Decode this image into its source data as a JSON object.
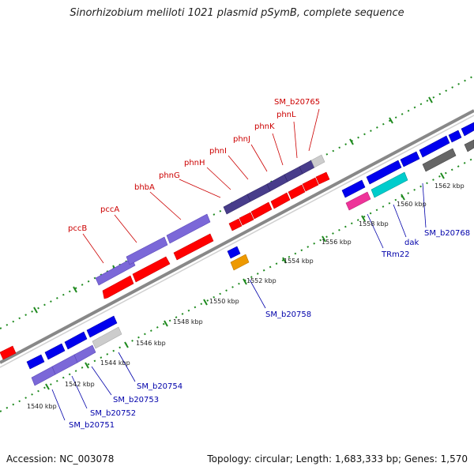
{
  "title": "Sinorhizobium meliloti 1021 plasmid pSymB, complete sequence",
  "footer": {
    "accession": "Accession: NC_003078",
    "stats": "Topology: circular; Length: 1,683,333 bp; Genes: 1,570"
  },
  "colors": {
    "backbone": "#888888",
    "tick_dots": "#1f8a1f",
    "label_top": "#cc0000",
    "label_bottom": "#0000aa",
    "red_gene": "#ff0000",
    "blue_gene": "#0000ee",
    "purple_gene": "#7b68d8",
    "dark_purple_gene": "#483d8b",
    "grey_gene": "#cccccc",
    "dark_grey_gene": "#666666",
    "cyan_gene": "#00cccc",
    "pink_gene": "#ee3399",
    "orange_gene": "#ee9900"
  },
  "kbp_labels": [
    {
      "id": "1540",
      "text": "1540 kbp"
    },
    {
      "id": "1542",
      "text": "1542 kbp"
    },
    {
      "id": "1544",
      "text": "1544 kbp"
    },
    {
      "id": "1546",
      "text": "1546 kbp"
    },
    {
      "id": "1548",
      "text": "1548 kbp"
    },
    {
      "id": "1550",
      "text": "1550 kbp"
    },
    {
      "id": "1552",
      "text": "1552 kbp"
    },
    {
      "id": "1554",
      "text": "1554 kbp"
    },
    {
      "id": "1556",
      "text": "1556 kbp"
    },
    {
      "id": "1558",
      "text": "1558 kbp"
    },
    {
      "id": "1560",
      "text": "1560 kbp"
    },
    {
      "id": "1562",
      "text": "1562 kbp"
    }
  ],
  "top_labels": [
    "pccB",
    "pccA",
    "bhbA",
    "phnG",
    "phnH",
    "phnI",
    "phnJ",
    "phnK",
    "phnL",
    "SM_b20765"
  ],
  "bottom_labels": [
    "SM_b20751",
    "SM_b20752",
    "SM_b20753",
    "SM_b20754",
    "SM_b20758",
    "TRm22",
    "dak",
    "SM_b20768"
  ]
}
